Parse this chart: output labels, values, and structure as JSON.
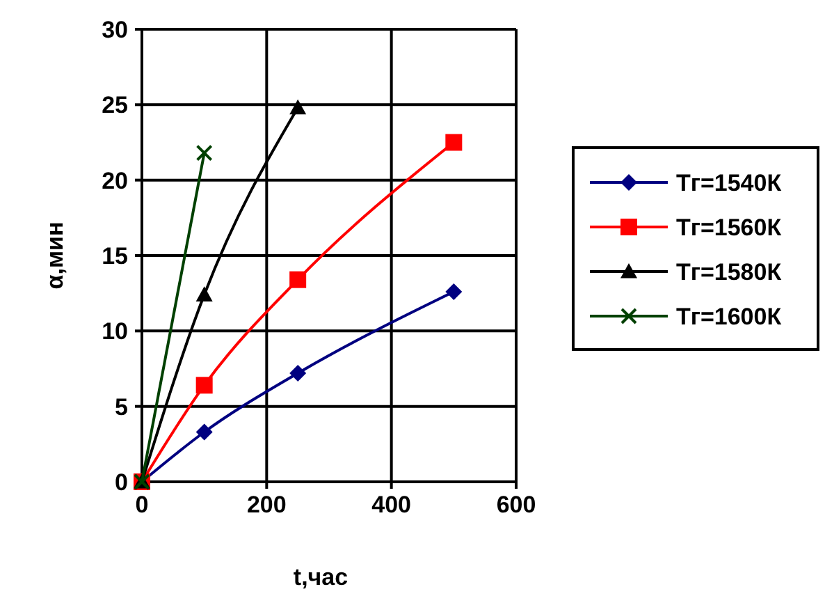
{
  "chart_data": {
    "type": "line",
    "xlabel": "t,час",
    "ylabel": "α,мин",
    "xlim": [
      0,
      600
    ],
    "xticks": [
      0,
      200,
      400,
      600
    ],
    "ylim": [
      0,
      30
    ],
    "yticks": [
      0,
      5,
      10,
      15,
      20,
      25,
      30
    ],
    "grid": true,
    "legend": "right",
    "line_style": "solid",
    "series": [
      {
        "name": "Тг=1540К",
        "color": "#000080",
        "marker": "diamond",
        "x": [
          0,
          100,
          250,
          500
        ],
        "values": [
          0,
          3.3,
          7.2,
          12.6
        ]
      },
      {
        "name": "Тг=1560К",
        "color": "#ff0000",
        "marker": "square",
        "x": [
          0,
          100,
          250,
          500
        ],
        "values": [
          0,
          6.4,
          13.4,
          22.5
        ]
      },
      {
        "name": "Тг=1580К",
        "color": "#000000",
        "marker": "triangle",
        "x": [
          0,
          100,
          250
        ],
        "values": [
          0,
          12.4,
          24.8
        ]
      },
      {
        "name": "Тг=1600К",
        "color": "#004000",
        "marker": "cross",
        "x": [
          0,
          100
        ],
        "values": [
          0,
          21.8
        ]
      }
    ]
  }
}
